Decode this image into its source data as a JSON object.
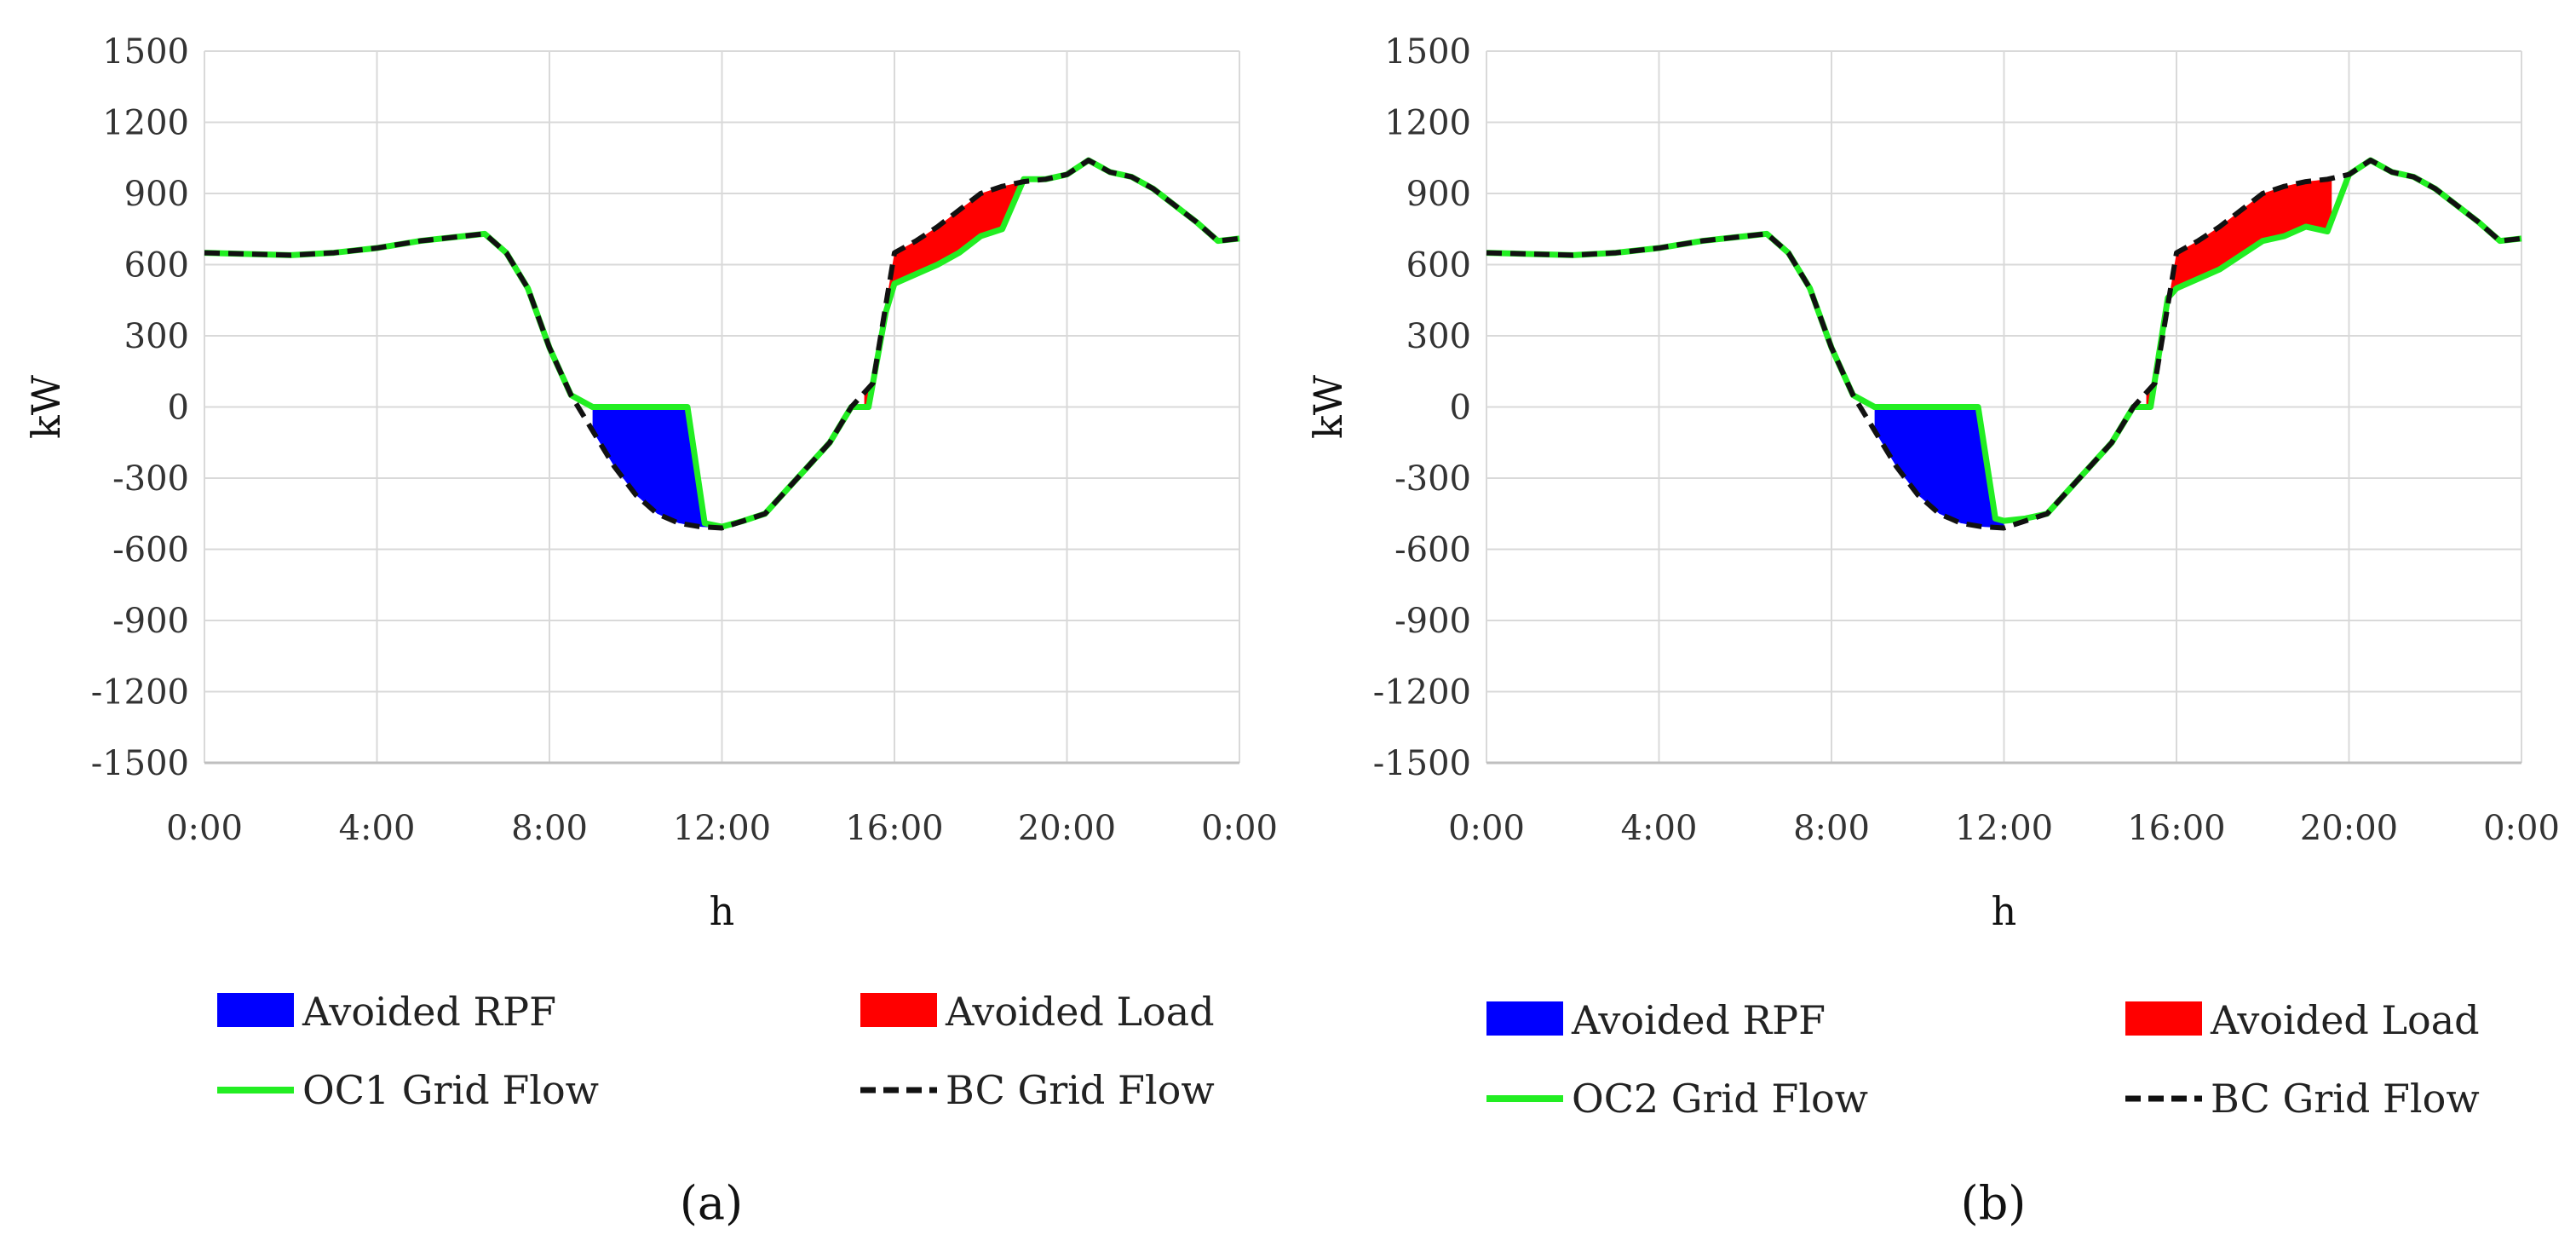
{
  "chart_data": [
    {
      "type": "line",
      "panel_label": "(a)",
      "xlabel": "h",
      "ylabel": "kW",
      "ylim": [
        -1500,
        1500
      ],
      "y_ticks": [
        "1500",
        "1200",
        "900",
        "600",
        "300",
        "0",
        "-300",
        "-600",
        "-900",
        "-1200",
        "-1500"
      ],
      "x_ticks": [
        "0:00",
        "4:00",
        "8:00",
        "12:00",
        "16:00",
        "20:00",
        "0:00"
      ],
      "grid": true,
      "legend": [
        {
          "label": "Avoided RPF",
          "kind": "area",
          "color": "#0000ff"
        },
        {
          "label": "Avoided Load",
          "kind": "area",
          "color": "#ff0000"
        },
        {
          "label": "OC1 Grid Flow",
          "kind": "solid",
          "color": "#22ee22"
        },
        {
          "label": "BC Grid Flow",
          "kind": "dashed",
          "color": "#111111"
        }
      ],
      "series": [
        {
          "name": "BC Grid Flow",
          "x": [
            0,
            1,
            2,
            3,
            4,
            5,
            6,
            6.5,
            7,
            7.5,
            8,
            8.5,
            9,
            9.5,
            10,
            10.5,
            11,
            11.5,
            12,
            12.5,
            13,
            13.5,
            14,
            14.5,
            15,
            15.5,
            16,
            16.5,
            17,
            17.5,
            18,
            18.5,
            19,
            19.5,
            20,
            20.5,
            21,
            21.5,
            22,
            22.5,
            23,
            23.5,
            24
          ],
          "y": [
            650,
            645,
            640,
            650,
            670,
            700,
            720,
            730,
            650,
            500,
            250,
            50,
            -100,
            -250,
            -370,
            -450,
            -490,
            -505,
            -510,
            -480,
            -450,
            -350,
            -250,
            -150,
            0,
            100,
            650,
            700,
            760,
            830,
            900,
            930,
            950,
            960,
            980,
            1040,
            990,
            970,
            920,
            850,
            780,
            700,
            710
          ]
        },
        {
          "name": "OC1 Grid Flow",
          "x": [
            0,
            1,
            2,
            3,
            4,
            5,
            6,
            6.5,
            7,
            7.5,
            8,
            8.5,
            9,
            9.5,
            10,
            10.5,
            11,
            11.2,
            11.6,
            12,
            12.5,
            13,
            13.5,
            14,
            14.5,
            15,
            15.4,
            15.8,
            16,
            16.5,
            17,
            17.5,
            18,
            18.5,
            19,
            19.5,
            20,
            20.5,
            21,
            21.5,
            22,
            22.5,
            23,
            23.5,
            24
          ],
          "y": [
            650,
            645,
            640,
            650,
            670,
            700,
            720,
            730,
            650,
            500,
            250,
            50,
            0,
            0,
            0,
            0,
            0,
            0,
            -490,
            -505,
            -480,
            -450,
            -350,
            -250,
            -150,
            0,
            0,
            400,
            520,
            560,
            600,
            650,
            720,
            750,
            960,
            960,
            980,
            1040,
            990,
            970,
            920,
            850,
            780,
            700,
            710
          ]
        }
      ]
    },
    {
      "type": "line",
      "panel_label": "(b)",
      "xlabel": "h",
      "ylabel": "kW",
      "ylim": [
        -1500,
        1500
      ],
      "y_ticks": [
        "1500",
        "1200",
        "900",
        "600",
        "300",
        "0",
        "-300",
        "-600",
        "-900",
        "-1200",
        "-1500"
      ],
      "x_ticks": [
        "0:00",
        "4:00",
        "8:00",
        "12:00",
        "16:00",
        "20:00",
        "0:00"
      ],
      "grid": true,
      "legend": [
        {
          "label": "Avoided RPF",
          "kind": "area",
          "color": "#0000ff"
        },
        {
          "label": "Avoided Load",
          "kind": "area",
          "color": "#ff0000"
        },
        {
          "label": "OC2 Grid Flow",
          "kind": "solid",
          "color": "#22ee22"
        },
        {
          "label": "BC Grid Flow",
          "kind": "dashed",
          "color": "#111111"
        }
      ],
      "series": [
        {
          "name": "BC Grid Flow",
          "x": [
            0,
            1,
            2,
            3,
            4,
            5,
            6,
            6.5,
            7,
            7.5,
            8,
            8.5,
            9,
            9.5,
            10,
            10.5,
            11,
            11.5,
            12,
            12.5,
            13,
            13.5,
            14,
            14.5,
            15,
            15.5,
            16,
            16.5,
            17,
            17.5,
            18,
            18.5,
            19,
            19.5,
            20,
            20.5,
            21,
            21.5,
            22,
            22.5,
            23,
            23.5,
            24
          ],
          "y": [
            650,
            645,
            640,
            650,
            670,
            700,
            720,
            730,
            650,
            500,
            250,
            50,
            -100,
            -250,
            -370,
            -450,
            -490,
            -505,
            -510,
            -480,
            -450,
            -350,
            -250,
            -150,
            0,
            100,
            650,
            700,
            760,
            830,
            900,
            930,
            950,
            960,
            980,
            1040,
            990,
            970,
            920,
            850,
            780,
            700,
            710
          ]
        },
        {
          "name": "OC2 Grid Flow",
          "x": [
            0,
            1,
            2,
            3,
            4,
            5,
            6,
            6.5,
            7,
            7.5,
            8,
            8.5,
            9,
            9.5,
            10,
            10.5,
            11,
            11.4,
            11.8,
            12,
            12.5,
            13,
            13.5,
            14,
            14.5,
            15,
            15.4,
            15.8,
            16,
            16.5,
            17,
            17.5,
            18,
            18.5,
            19,
            19.5,
            20,
            20.5,
            21,
            21.5,
            22,
            22.5,
            23,
            23.5,
            24
          ],
          "y": [
            650,
            645,
            640,
            650,
            670,
            700,
            720,
            730,
            650,
            500,
            250,
            50,
            0,
            0,
            0,
            0,
            0,
            0,
            -470,
            -480,
            -470,
            -450,
            -350,
            -250,
            -150,
            0,
            0,
            460,
            500,
            540,
            580,
            640,
            700,
            720,
            760,
            740,
            980,
            1040,
            990,
            970,
            920,
            850,
            780,
            700,
            710
          ]
        }
      ]
    }
  ]
}
